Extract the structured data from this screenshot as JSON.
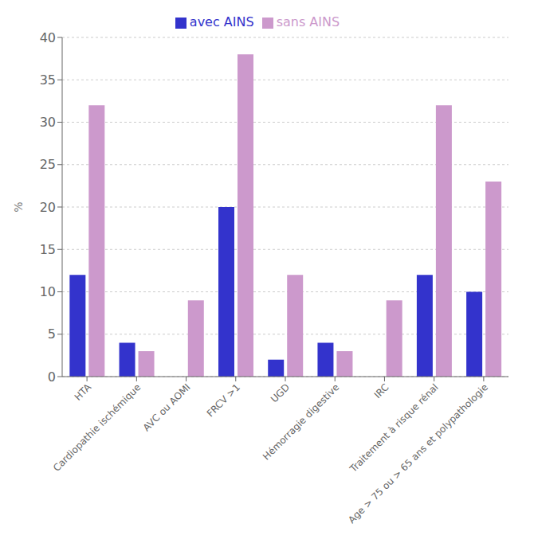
{
  "chart_data": {
    "type": "bar",
    "categories": [
      "HTA",
      "Cardiopathie ischémique",
      "AVC ou AOMI",
      "FRCV >1",
      "UGD",
      "Hémorragie digestive",
      "IRC",
      "Traitement à risque rénal",
      "Age > 75 ou > 65 ans et polypathologie"
    ],
    "series": [
      {
        "name": "avec AINS",
        "color": "#3333cc",
        "values": [
          12,
          4,
          0,
          20,
          2,
          4,
          0,
          12,
          10
        ]
      },
      {
        "name": "sans AINS",
        "color": "#cc99cc",
        "values": [
          32,
          3,
          9,
          38,
          12,
          3,
          9,
          32,
          23
        ]
      }
    ],
    "ylabel": "%",
    "ylim": [
      0,
      40
    ],
    "yticks": [
      0,
      5,
      10,
      15,
      20,
      25,
      30,
      35,
      40
    ],
    "grid": true,
    "legend": "top"
  }
}
